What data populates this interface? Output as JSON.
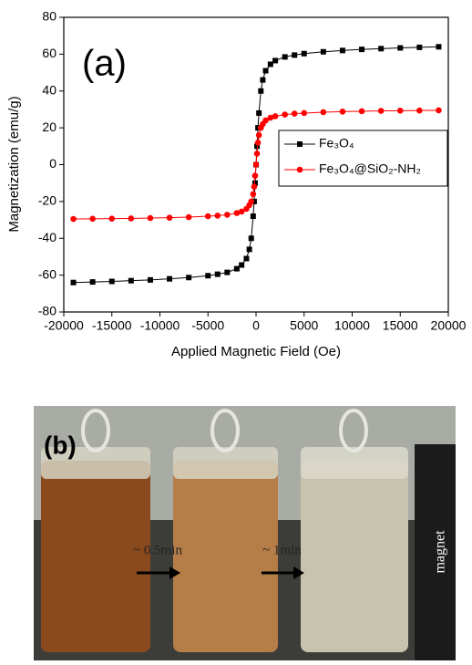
{
  "chart_data": {
    "type": "line",
    "panel_label": "(a)",
    "x_label": "Applied Magnetic Field (Oe)",
    "y_label": "Magnetization (emu/g)",
    "x": [
      -19000,
      -17000,
      -15000,
      -13000,
      -11000,
      -9000,
      -7000,
      -5000,
      -4000,
      -3000,
      -2000,
      -1500,
      -1000,
      -700,
      -500,
      -300,
      -200,
      -100,
      0,
      100,
      200,
      300,
      500,
      700,
      1000,
      1500,
      2000,
      3000,
      4000,
      5000,
      7000,
      9000,
      11000,
      13000,
      15000,
      17000,
      19000
    ],
    "series": [
      {
        "name": "Fe₃O₄",
        "color": "#000000",
        "marker": "square",
        "values": [
          -64,
          -63.7,
          -63.4,
          -63,
          -62.6,
          -62,
          -61.3,
          -60.3,
          -59.5,
          -58.5,
          -56.5,
          -54.5,
          -51,
          -46,
          -40,
          -28,
          -20,
          -10,
          0,
          10,
          20,
          28,
          40,
          46,
          51,
          54.5,
          56.5,
          58.5,
          59.5,
          60.3,
          61.3,
          62,
          62.6,
          63,
          63.4,
          63.7,
          64
        ]
      },
      {
        "name": "Fe₃O₄@SiO₂-NH₂",
        "color": "#ff0000",
        "marker": "circle",
        "values": [
          -29.5,
          -29.4,
          -29.3,
          -29.2,
          -29,
          -28.8,
          -28.5,
          -28,
          -27.7,
          -27.2,
          -26.3,
          -25.5,
          -24,
          -22,
          -20,
          -16,
          -12,
          -6,
          0,
          6,
          12,
          16,
          20,
          22,
          24,
          25.5,
          26.3,
          27.2,
          27.7,
          28,
          28.5,
          28.8,
          29,
          29.2,
          29.3,
          29.4,
          29.5
        ]
      }
    ],
    "xlim": [
      -20000,
      20000
    ],
    "xticks": [
      -20000,
      -15000,
      -10000,
      -5000,
      0,
      5000,
      10000,
      15000,
      20000
    ],
    "ylim": [
      -80,
      80
    ],
    "yticks": [
      -80,
      -60,
      -40,
      -20,
      0,
      20,
      40,
      60,
      80
    ]
  },
  "photo": {
    "label": "(b)",
    "step1": "~ 0.5min",
    "step2": "~ 1min",
    "magnet": "magnet"
  }
}
